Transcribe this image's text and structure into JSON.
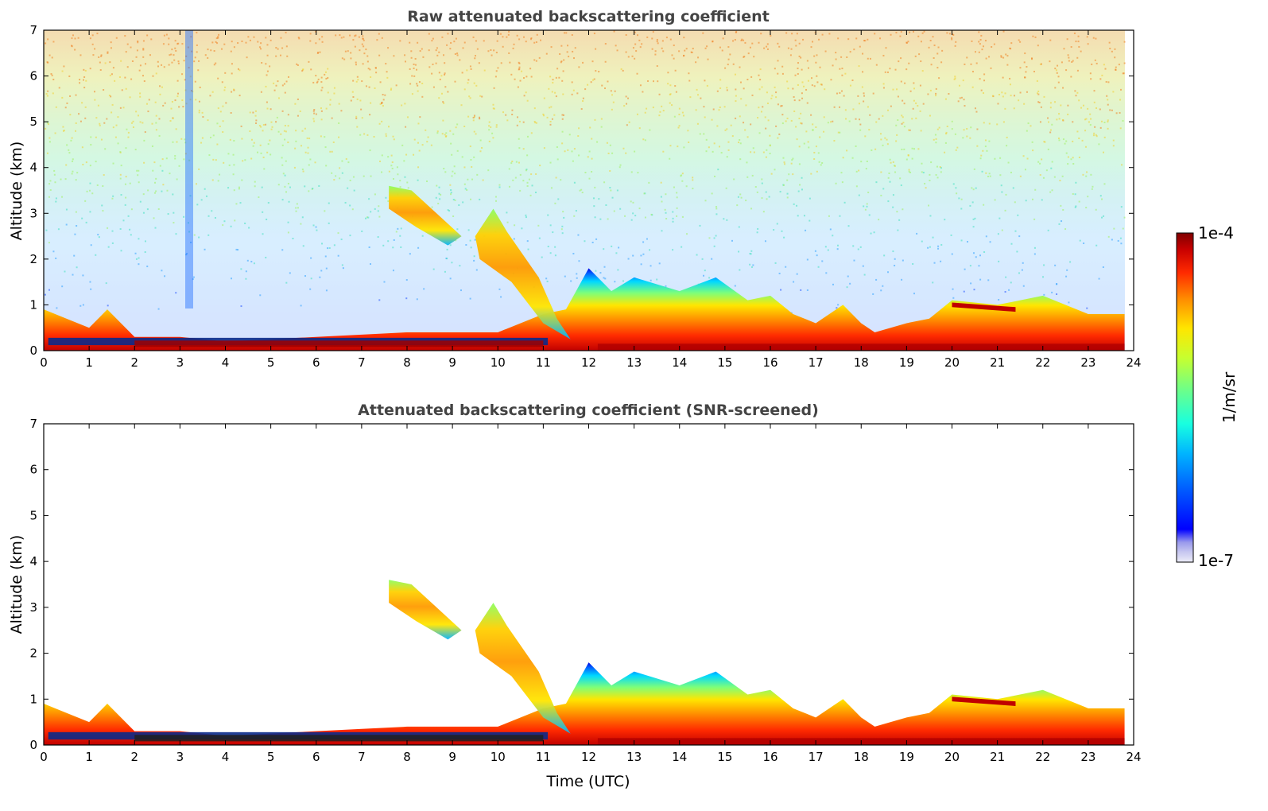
{
  "chart_data": [
    {
      "type": "heatmap",
      "title": "Raw attenuated backscattering coefficient",
      "xlabel": "",
      "ylabel": "Altitude (km)",
      "xlim": [
        0,
        24
      ],
      "ylim": [
        0,
        7
      ],
      "xticks": [
        "0",
        "1",
        "2",
        "3",
        "4",
        "5",
        "6",
        "7",
        "8",
        "9",
        "10",
        "11",
        "12",
        "13",
        "14",
        "15",
        "16",
        "17",
        "18",
        "19",
        "20",
        "21",
        "22",
        "23",
        "24"
      ],
      "yticks": [
        "0",
        "1",
        "2",
        "3",
        "4",
        "5",
        "6",
        "7"
      ],
      "colorscale": "jet",
      "background": "noisy (raw signal, not screened)",
      "mixing_layer_top_km": [
        [
          0,
          0.9
        ],
        [
          0.5,
          0.7
        ],
        [
          1,
          0.5
        ],
        [
          1.4,
          0.9
        ],
        [
          2,
          0.3
        ],
        [
          3,
          0.3
        ],
        [
          4,
          0.2
        ],
        [
          5,
          0.25
        ],
        [
          6,
          0.3
        ],
        [
          7,
          0.35
        ],
        [
          8,
          0.4
        ],
        [
          9,
          0.4
        ],
        [
          10,
          0.4
        ],
        [
          11,
          0.8
        ],
        [
          11.5,
          0.9
        ],
        [
          12,
          1.8
        ],
        [
          12.5,
          1.3
        ],
        [
          13,
          1.6
        ],
        [
          14,
          1.3
        ],
        [
          14.8,
          1.6
        ],
        [
          15.5,
          1.1
        ],
        [
          16,
          1.2
        ],
        [
          16.5,
          0.8
        ],
        [
          17,
          0.6
        ],
        [
          17.6,
          1.0
        ],
        [
          18,
          0.6
        ],
        [
          18.3,
          0.4
        ],
        [
          19,
          0.6
        ],
        [
          19.5,
          0.7
        ],
        [
          20,
          1.1
        ],
        [
          21,
          1.0
        ],
        [
          22,
          1.2
        ],
        [
          23,
          0.8
        ],
        [
          23.8,
          0.8
        ]
      ],
      "aerosol_plumes": [
        {
          "t_start": 7.6,
          "t_end": 9.2,
          "z_bottom": 2.3,
          "z_top": 3.6
        },
        {
          "t_start": 9.5,
          "t_end": 11.3,
          "z_bottom": 0.3,
          "z_top": 3.1
        }
      ]
    },
    {
      "type": "heatmap",
      "title": "Attenuated backscattering coefficient (SNR-screened)",
      "xlabel": "Time (UTC)",
      "ylabel": "Altitude (km)",
      "xlim": [
        0,
        24
      ],
      "ylim": [
        0,
        7
      ],
      "xticks": [
        "0",
        "1",
        "2",
        "3",
        "4",
        "5",
        "6",
        "7",
        "8",
        "9",
        "10",
        "11",
        "12",
        "13",
        "14",
        "15",
        "16",
        "17",
        "18",
        "19",
        "20",
        "21",
        "22",
        "23",
        "24"
      ],
      "yticks": [
        "0",
        "1",
        "2",
        "3",
        "4",
        "5",
        "6",
        "7"
      ],
      "colorscale": "jet",
      "background": "screened (white where SNR low)"
    }
  ],
  "colorbar": {
    "label": "1/m/sr",
    "max_label": "1e-4",
    "min_label": "1e-7",
    "scale": "log",
    "colors": [
      "#ececf8",
      "#c8c8f0",
      "#9a9aec",
      "#0000ff",
      "#005bff",
      "#00b4ff",
      "#18ffe0",
      "#6aff8c",
      "#c6ff30",
      "#ffe600",
      "#ff8c00",
      "#ff2a00",
      "#c80000",
      "#7f0000"
    ]
  }
}
